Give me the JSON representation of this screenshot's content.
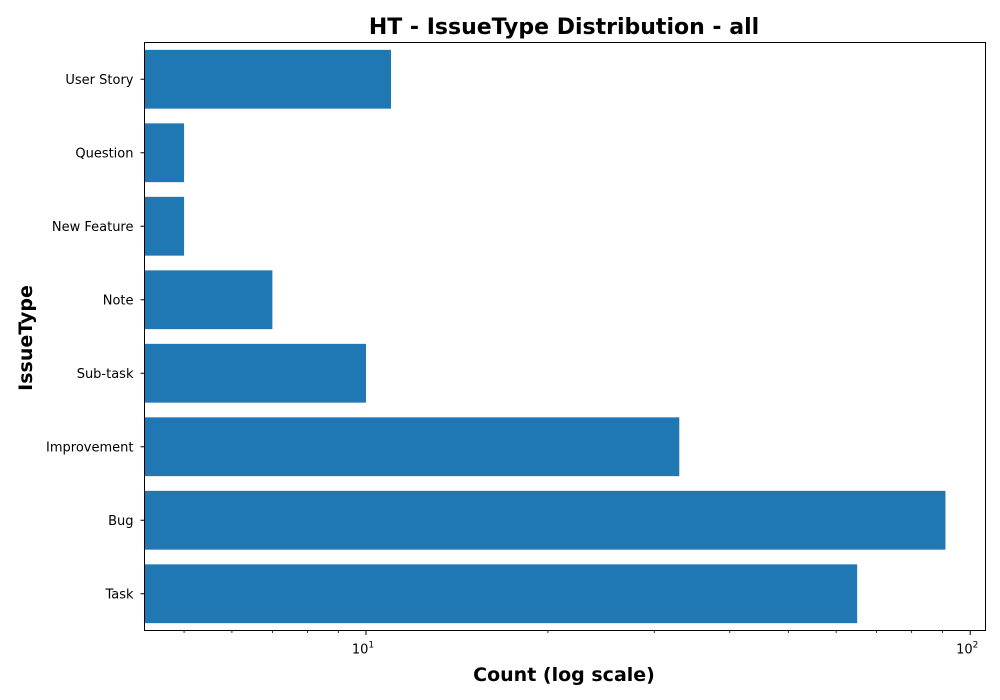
{
  "chart_data": {
    "type": "bar",
    "orientation": "horizontal",
    "title": "HT - IssueType Distribution - all",
    "xlabel": "Count (log scale)",
    "ylabel": "IssueType",
    "xscale": "log",
    "xlim": [
      4.3,
      106
    ],
    "x_major_ticks": [
      {
        "value": 10,
        "base": "10",
        "exp": "1"
      },
      {
        "value": 100,
        "base": "10",
        "exp": "2"
      }
    ],
    "x_minor_ticks": [
      5,
      6,
      7,
      8,
      9,
      20,
      30,
      40,
      50,
      60,
      70,
      80,
      90
    ],
    "categories": [
      "Task",
      "Bug",
      "Improvement",
      "Sub-task",
      "Note",
      "New Feature",
      "Question",
      "User Story"
    ],
    "values": [
      65,
      91,
      33,
      10,
      7,
      5,
      5,
      11
    ],
    "bar_color": "#1f77b4",
    "grid": false
  }
}
